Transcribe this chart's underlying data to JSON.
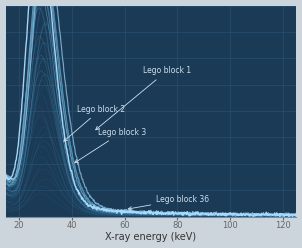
{
  "bg_color": "#1b3a56",
  "plot_bg_color": "#1b3a56",
  "line_color": "#4488bb",
  "line_color_bright": "#99ccee",
  "grid_color": "#274f70",
  "text_color": "#cce0ee",
  "xlabel": "X-ray energy (keV)",
  "xmin": 15,
  "xmax": 125,
  "ymin": 0,
  "ymax": 0.55,
  "xticks": [
    20,
    40,
    60,
    80,
    100,
    120
  ],
  "annotation_1": "Lego block 1",
  "annotation_2": "Lego block 2",
  "annotation_3": "Lego block 3",
  "annotation_36": "Lego block 36",
  "n_curves": 36,
  "fig_bg": "#cdd5dc"
}
